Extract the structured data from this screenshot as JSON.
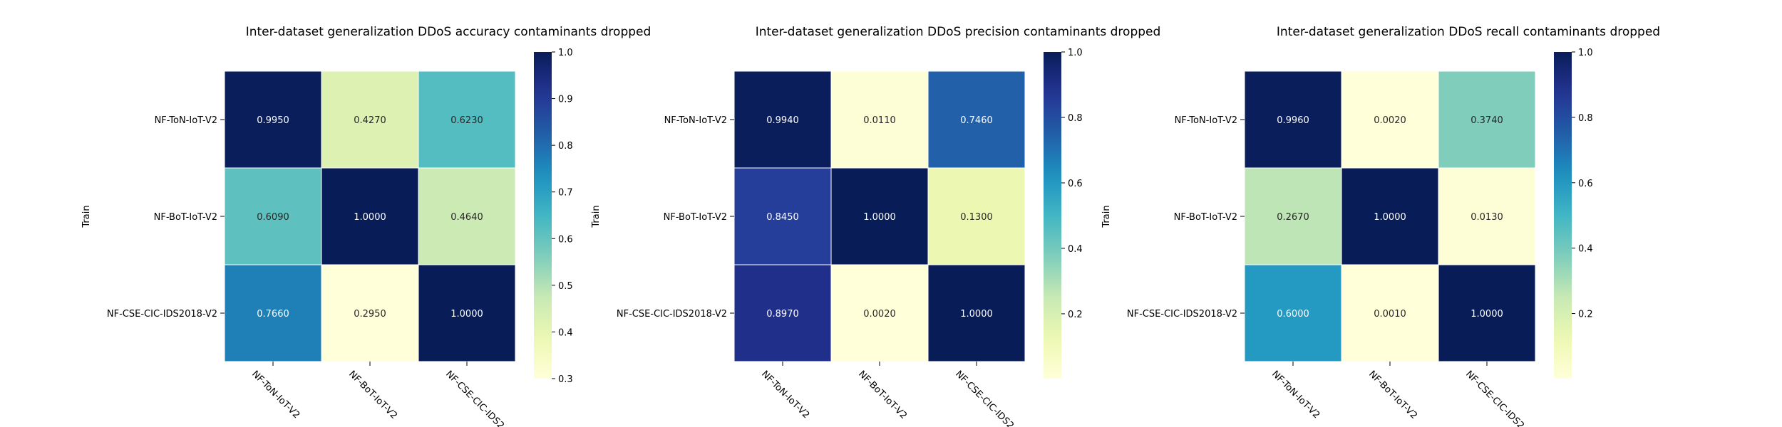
{
  "chart_data": [
    {
      "type": "heatmap",
      "title": "Inter-dataset generalization DDoS accuracy contaminants dropped",
      "ylabel": "Train",
      "xlabel": "",
      "rows": [
        "NF-ToN-IoT-V2",
        "NF-BoT-IoT-V2",
        "NF-CSE-CIC-IDS2018-V2"
      ],
      "cols": [
        "NF-ToN-IoT-V2",
        "NF-BoT-IoT-V2",
        "NF-CSE-CIC-IDS2"
      ],
      "values": [
        [
          0.995,
          0.427,
          0.623
        ],
        [
          0.609,
          1.0,
          0.464
        ],
        [
          0.766,
          0.295,
          1.0
        ]
      ],
      "labels": [
        [
          "0.9950",
          "0.4270",
          "0.6230"
        ],
        [
          "0.6090",
          "1.0000",
          "0.4640"
        ],
        [
          "0.7660",
          "0.2950",
          "1.0000"
        ]
      ],
      "colormap": "YlGnBu",
      "colorbar": {
        "min": 0.3,
        "max": 1.0,
        "ticks": [
          "0.3",
          "0.4",
          "0.5",
          "0.6",
          "0.7",
          "0.8",
          "0.9",
          "1.0"
        ]
      }
    },
    {
      "type": "heatmap",
      "title": "Inter-dataset generalization DDoS precision contaminants dropped",
      "ylabel": "Train",
      "xlabel": "",
      "rows": [
        "NF-ToN-IoT-V2",
        "NF-BoT-IoT-V2",
        "NF-CSE-CIC-IDS2018-V2"
      ],
      "cols": [
        "NF-ToN-IoT-V2",
        "NF-BoT-IoT-V2",
        "NF-CSE-CIC-IDS2"
      ],
      "values": [
        [
          0.994,
          0.011,
          0.746
        ],
        [
          0.845,
          1.0,
          0.13
        ],
        [
          0.897,
          0.002,
          1.0
        ]
      ],
      "labels": [
        [
          "0.9940",
          "0.0110",
          "0.7460"
        ],
        [
          "0.8450",
          "1.0000",
          "0.1300"
        ],
        [
          "0.8970",
          "0.0020",
          "1.0000"
        ]
      ],
      "colormap": "YlGnBu",
      "colorbar": {
        "min": 0.002,
        "max": 1.0,
        "ticks": [
          "0.2",
          "0.4",
          "0.6",
          "0.8",
          "1.0"
        ]
      }
    },
    {
      "type": "heatmap",
      "title": "Inter-dataset generalization DDoS recall contaminants dropped",
      "ylabel": "Train",
      "xlabel": "",
      "rows": [
        "NF-ToN-IoT-V2",
        "NF-BoT-IoT-V2",
        "NF-CSE-CIC-IDS2018-V2"
      ],
      "cols": [
        "NF-ToN-IoT-V2",
        "NF-BoT-IoT-V2",
        "NF-CSE-CIC-IDS2"
      ],
      "values": [
        [
          0.996,
          0.002,
          0.374
        ],
        [
          0.267,
          1.0,
          0.013
        ],
        [
          0.6,
          0.001,
          1.0
        ]
      ],
      "labels": [
        [
          "0.9960",
          "0.0020",
          "0.3740"
        ],
        [
          "0.2670",
          "1.0000",
          "0.0130"
        ],
        [
          "0.6000",
          "0.0010",
          "1.0000"
        ]
      ],
      "colormap": "YlGnBu",
      "colorbar": {
        "min": 0.001,
        "max": 1.0,
        "ticks": [
          "0.2",
          "0.4",
          "0.6",
          "0.8",
          "1.0"
        ]
      }
    }
  ]
}
